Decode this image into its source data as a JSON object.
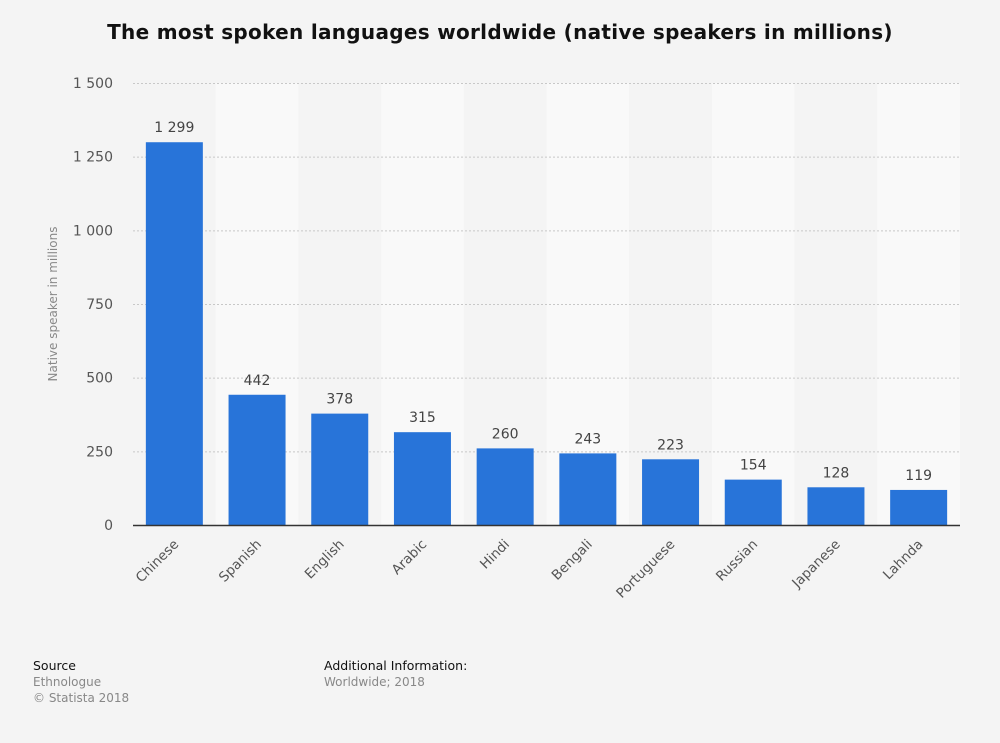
{
  "chart_data": {
    "type": "bar",
    "title": "The most spoken languages worldwide (native speakers in millions)",
    "xlabel": "",
    "ylabel": "Native speaker in millions",
    "categories": [
      "Chinese",
      "Spanish",
      "English",
      "Arabic",
      "Hindi",
      "Bengali",
      "Portuguese",
      "Russian",
      "Japanese",
      "Lahnda"
    ],
    "values": [
      1299,
      442,
      378,
      315,
      260,
      243,
      223,
      154,
      128,
      119
    ],
    "data_labels": [
      "1 299",
      "442",
      "378",
      "315",
      "260",
      "243",
      "223",
      "154",
      "128",
      "119"
    ],
    "ylim": [
      0,
      1500
    ],
    "yticks": [
      0,
      250,
      500,
      750,
      1000,
      1250,
      1500
    ],
    "ytick_labels": [
      "0",
      "250",
      "500",
      "750",
      "1 000",
      "1 250",
      "1 500"
    ],
    "grid": true,
    "legend": "none",
    "bar_color": "#2874d9"
  },
  "footer": {
    "source_heading": "Source",
    "source_lines": [
      "Ethnologue",
      "© Statista 2018"
    ],
    "additional_heading": "Additional Information:",
    "additional_lines": [
      "Worldwide; 2018"
    ]
  }
}
